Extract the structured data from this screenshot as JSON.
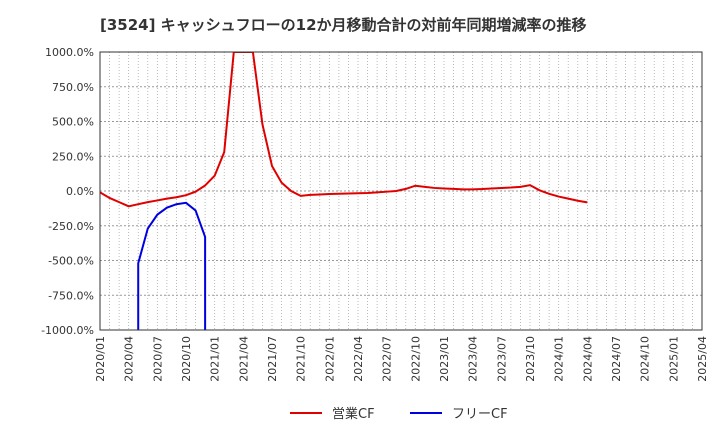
{
  "chart_data": {
    "type": "line",
    "title": "[3524]  キャッシュフローの12か月移動合計の対前年同期増減率の推移",
    "xlabel": "",
    "ylabel": "",
    "ylim": [
      -1000,
      1000
    ],
    "yticks": [
      1000,
      750,
      500,
      250,
      0,
      -250,
      -500,
      -750,
      -1000
    ],
    "ytick_labels": [
      "1000.0%",
      "750.0%",
      "500.0%",
      "250.0%",
      "0.0%",
      "-250.0%",
      "-500.0%",
      "-750.0%",
      "-1000.0%"
    ],
    "xticks": [
      "2020/01",
      "2020/04",
      "2020/07",
      "2020/10",
      "2021/01",
      "2021/04",
      "2021/07",
      "2021/10",
      "2022/01",
      "2022/04",
      "2022/07",
      "2022/10",
      "2023/01",
      "2023/04",
      "2023/07",
      "2023/10",
      "2024/01",
      "2024/04",
      "2024/07",
      "2024/10",
      "2025/01",
      "2025/04"
    ],
    "grid": true,
    "legend_position": "bottom",
    "series": [
      {
        "name": "営業CF",
        "color": "#e00000",
        "points": [
          [
            "2020/01",
            -10
          ],
          [
            "2020/02",
            -50
          ],
          [
            "2020/03",
            -80
          ],
          [
            "2020/04",
            -110
          ],
          [
            "2020/05",
            -95
          ],
          [
            "2020/06",
            -80
          ],
          [
            "2020/07",
            -68
          ],
          [
            "2020/08",
            -55
          ],
          [
            "2020/09",
            -45
          ],
          [
            "2020/10",
            -30
          ],
          [
            "2020/11",
            -5
          ],
          [
            "2020/12",
            40
          ],
          [
            "2021/01",
            110
          ],
          [
            "2021/02",
            280
          ],
          [
            "2021/03",
            1000
          ],
          [
            "2021/05",
            1000
          ],
          [
            "2021/06",
            480
          ],
          [
            "2021/07",
            180
          ],
          [
            "2021/08",
            60
          ],
          [
            "2021/09",
            0
          ],
          [
            "2021/10",
            -35
          ],
          [
            "2021/11",
            -28
          ],
          [
            "2021/12",
            -25
          ],
          [
            "2022/01",
            -22
          ],
          [
            "2022/02",
            -20
          ],
          [
            "2022/03",
            -18
          ],
          [
            "2022/04",
            -16
          ],
          [
            "2022/05",
            -14
          ],
          [
            "2022/06",
            -10
          ],
          [
            "2022/07",
            -5
          ],
          [
            "2022/08",
            0
          ],
          [
            "2022/09",
            15
          ],
          [
            "2022/10",
            38
          ],
          [
            "2022/11",
            30
          ],
          [
            "2022/12",
            22
          ],
          [
            "2023/01",
            18
          ],
          [
            "2023/02",
            15
          ],
          [
            "2023/03",
            12
          ],
          [
            "2023/04",
            12
          ],
          [
            "2023/05",
            14
          ],
          [
            "2023/06",
            18
          ],
          [
            "2023/07",
            22
          ],
          [
            "2023/08",
            25
          ],
          [
            "2023/09",
            30
          ],
          [
            "2023/10",
            42
          ],
          [
            "2023/11",
            5
          ],
          [
            "2023/12",
            -20
          ],
          [
            "2024/01",
            -40
          ],
          [
            "2024/02",
            -55
          ],
          [
            "2024/03",
            -70
          ],
          [
            "2024/04",
            -82
          ]
        ]
      },
      {
        "name": "フリーCF",
        "color": "#0000e0",
        "points": [
          [
            "2020/05",
            -1000
          ],
          [
            "2020/05",
            -520
          ],
          [
            "2020/06",
            -270
          ],
          [
            "2020/07",
            -170
          ],
          [
            "2020/08",
            -120
          ],
          [
            "2020/09",
            -95
          ],
          [
            "2020/10",
            -85
          ],
          [
            "2020/11",
            -140
          ],
          [
            "2020/12",
            -330
          ],
          [
            "2020/12",
            -1000
          ]
        ]
      }
    ]
  }
}
